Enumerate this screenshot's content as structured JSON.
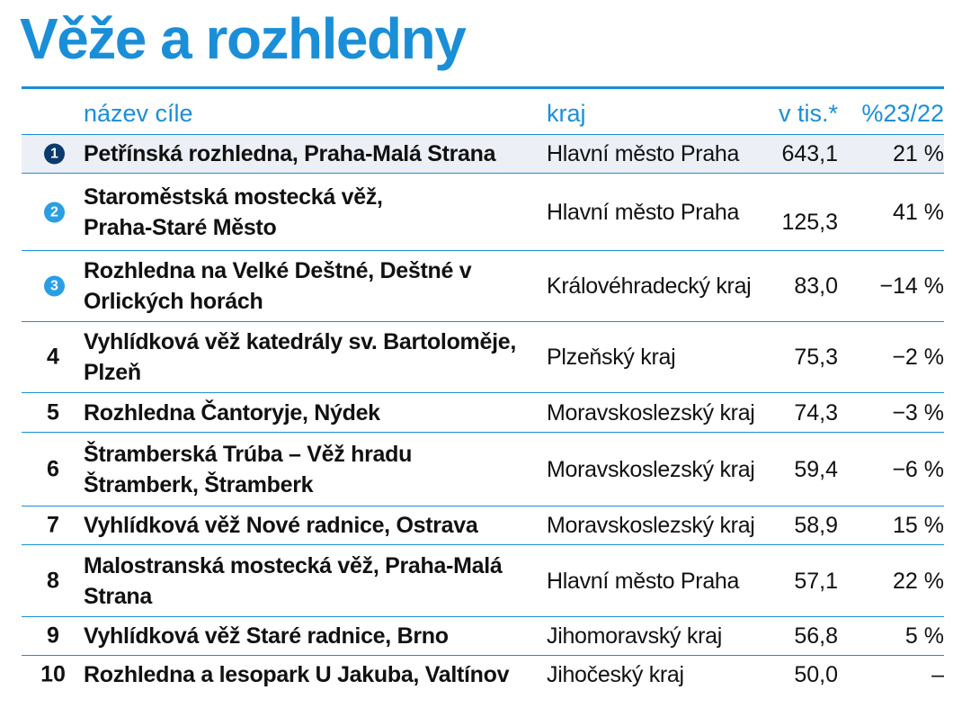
{
  "title": "Věže a rozhledny",
  "columns": {
    "name": "název cíle",
    "region": "kraj",
    "value": "v tis.*",
    "change": "%23/22"
  },
  "rows": [
    {
      "rank": "1",
      "name": "Petřínská rozhledna, Praha-Malá Strana",
      "region": "Hlavní město Praha",
      "value": "643,1",
      "change": "21 %"
    },
    {
      "rank": "2",
      "name": "Staroměstská mostecká věž, Praha-Staré Město",
      "region": "Hlavní město Praha",
      "value": "125,3",
      "change": "41 %"
    },
    {
      "rank": "3",
      "name": "Rozhledna na Velké Deštné, Deštné v Orlických horách",
      "region": "Královéhradecký kraj",
      "value": "83,0",
      "change": "−14 %"
    },
    {
      "rank": "4",
      "name": "Vyhlídková věž katedrály sv. Bartoloměje, Plzeň",
      "region": "Plzeňský kraj",
      "value": "75,3",
      "change": "−2 %"
    },
    {
      "rank": "5",
      "name": "Rozhledna Čantoryje, Nýdek",
      "region": "Moravskoslezský kraj",
      "value": "74,3",
      "change": "−3 %"
    },
    {
      "rank": "6",
      "name": "Štramberská Trúba – Věž hradu Štramberk, Štramberk",
      "region": "Moravskoslezský kraj",
      "value": "59,4",
      "change": "−6 %"
    },
    {
      "rank": "7",
      "name": "Vyhlídková věž Nové radnice, Ostrava",
      "region": "Moravskoslezský kraj",
      "value": "58,9",
      "change": "15 %"
    },
    {
      "rank": "8",
      "name": "Malostranská mostecká věž, Praha-Malá Strana",
      "region": "Hlavní město Praha",
      "value": "57,1",
      "change": "22 %"
    },
    {
      "rank": "9",
      "name": "Vyhlídková věž Staré radnice, Brno",
      "region": "Jihomoravský kraj",
      "value": "56,8",
      "change": "5 %"
    },
    {
      "rank": "10",
      "name": "Rozhledna a lesopark U Jakuba, Valtínov",
      "region": "Jihočeský kraj",
      "value": "50,0",
      "change": "–"
    }
  ],
  "colors": {
    "accent": "#1a8fd8",
    "badge_top": "#0b3a6e",
    "badge_other": "#2a9ee4",
    "row_shade": "#ecf0f6"
  }
}
